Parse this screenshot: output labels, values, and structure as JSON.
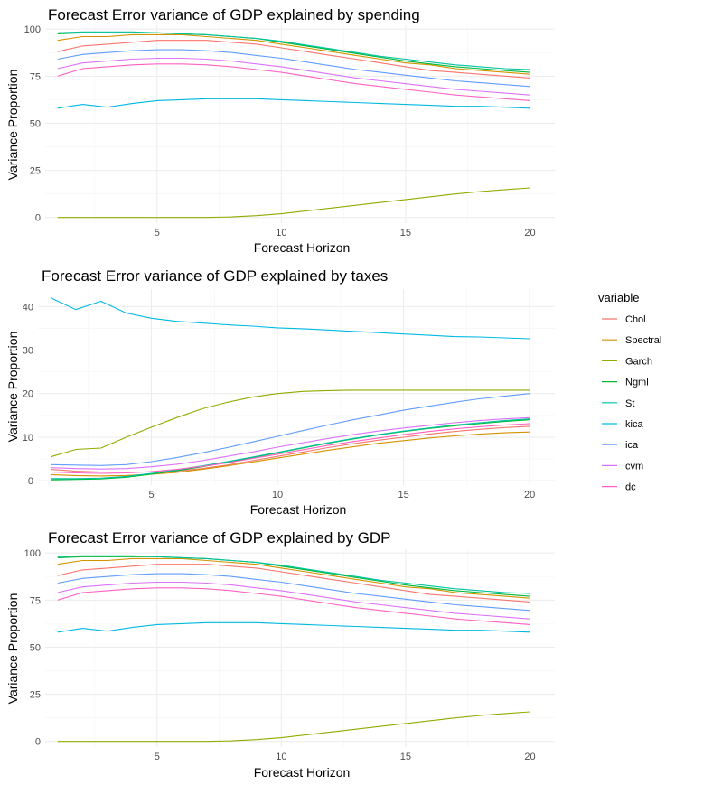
{
  "chart_data": [
    {
      "type": "line",
      "title": "Forecast Error variance of GDP explained by spending",
      "xlabel": "Forecast Horizon",
      "ylabel": "Variance Proportion",
      "xlim": [
        0.5,
        21
      ],
      "ylim": [
        -3,
        102
      ],
      "xticks": [
        5,
        10,
        15,
        20
      ],
      "yticks": [
        0,
        25,
        50,
        75,
        100
      ],
      "x": [
        1,
        2,
        3,
        4,
        5,
        6,
        7,
        8,
        9,
        10,
        11,
        12,
        13,
        14,
        15,
        16,
        17,
        18,
        19,
        20
      ],
      "series": [
        {
          "name": "Chol",
          "values": [
            88,
            91,
            92,
            93,
            94,
            94,
            94,
            93,
            92,
            90,
            88,
            86,
            84,
            82,
            80,
            78,
            77,
            76,
            75,
            74
          ]
        },
        {
          "name": "Spectral",
          "values": [
            94,
            96,
            96,
            97,
            97,
            97,
            96,
            95,
            94,
            92,
            90,
            88,
            86,
            84,
            82,
            81,
            79,
            78,
            77,
            76
          ]
        },
        {
          "name": "Garch",
          "values": [
            0,
            0,
            0,
            0,
            0,
            0,
            0,
            0.3,
            1,
            2,
            3.5,
            5,
            6.5,
            8,
            9.5,
            11,
            12.5,
            13.8,
            14.8,
            15.7
          ]
        },
        {
          "name": "Ngml",
          "values": [
            97.5,
            98,
            98,
            98,
            98,
            97.5,
            97,
            96,
            95,
            93,
            91,
            89,
            87,
            85,
            83,
            81.5,
            80,
            79,
            78,
            77
          ]
        },
        {
          "name": "St",
          "values": [
            98,
            98.5,
            98.5,
            98.5,
            98,
            97.5,
            97,
            96,
            95,
            93.5,
            91.5,
            89.5,
            87.5,
            85.5,
            84,
            82.5,
            81,
            80,
            79,
            78.5
          ]
        },
        {
          "name": "kica",
          "values": [
            58,
            60,
            58.5,
            60.5,
            62,
            62.5,
            63,
            63,
            63,
            62.5,
            62,
            61.5,
            61,
            60.5,
            60,
            59.5,
            59,
            59,
            58.5,
            58
          ]
        },
        {
          "name": "ica",
          "values": [
            84,
            86.5,
            87.5,
            88.5,
            89,
            89,
            88.5,
            87.5,
            86,
            84.5,
            82.5,
            80.5,
            78.5,
            77,
            75.5,
            74,
            72.5,
            71.5,
            70.5,
            69.5
          ]
        },
        {
          "name": "cvm",
          "values": [
            79,
            82,
            83,
            84,
            84.5,
            84.5,
            84,
            83,
            81.5,
            80,
            78,
            76,
            74,
            72.5,
            71,
            69.5,
            68,
            67,
            66,
            65
          ]
        },
        {
          "name": "dc",
          "values": [
            75,
            79,
            80,
            81,
            81.5,
            81.5,
            81,
            80,
            78.5,
            77,
            75,
            73,
            71,
            69.5,
            68,
            66.5,
            65,
            64,
            63,
            62
          ]
        }
      ]
    },
    {
      "type": "line",
      "title": "Forecast Error variance of GDP explained by taxes",
      "xlabel": "Forecast Horizon",
      "ylabel": "Variance Proportion",
      "xlim": [
        0.5,
        21
      ],
      "ylim": [
        -1,
        44
      ],
      "xticks": [
        5,
        10,
        15,
        20
      ],
      "yticks": [
        0,
        10,
        20,
        30,
        40
      ],
      "x": [
        1,
        2,
        3,
        4,
        5,
        6,
        7,
        8,
        9,
        10,
        11,
        12,
        13,
        14,
        15,
        16,
        17,
        18,
        19,
        20
      ],
      "series": [
        {
          "name": "Chol",
          "values": [
            2.6,
            2.2,
            2,
            2,
            2,
            2.2,
            2.8,
            3.6,
            4.6,
            5.6,
            6.6,
            7.6,
            8.5,
            9.3,
            10,
            10.7,
            11.3,
            11.8,
            12.2,
            12.5
          ]
        },
        {
          "name": "Spectral",
          "values": [
            1.4,
            1.2,
            1.1,
            1.2,
            1.5,
            1.9,
            2.6,
            3.4,
            4.3,
            5.2,
            6.1,
            7,
            7.8,
            8.6,
            9.2,
            9.8,
            10.3,
            10.7,
            11,
            11.2
          ]
        },
        {
          "name": "Garch",
          "values": [
            5.5,
            7.2,
            7.5,
            10,
            12.3,
            14.5,
            16.5,
            18,
            19.2,
            20,
            20.5,
            20.7,
            20.8,
            20.8,
            20.8,
            20.8,
            20.8,
            20.8,
            20.8,
            20.8
          ]
        },
        {
          "name": "Ngml",
          "values": [
            0.2,
            0.3,
            0.4,
            0.8,
            1.5,
            2.3,
            3.2,
            4.2,
            5.3,
            6.4,
            7.5,
            8.6,
            9.6,
            10.5,
            11.3,
            12,
            12.6,
            13.1,
            13.6,
            14
          ]
        },
        {
          "name": "St",
          "values": [
            0.5,
            0.5,
            0.6,
            1,
            1.7,
            2.5,
            3.4,
            4.4,
            5.4,
            6.5,
            7.6,
            8.7,
            9.7,
            10.6,
            11.4,
            12.1,
            12.8,
            13.3,
            13.8,
            14.2
          ]
        },
        {
          "name": "kica",
          "values": [
            42,
            39.3,
            41.2,
            38.5,
            37.3,
            36.6,
            36.2,
            35.8,
            35.5,
            35.1,
            34.9,
            34.6,
            34.3,
            34,
            33.7,
            33.4,
            33.1,
            33,
            32.8,
            32.6
          ]
        },
        {
          "name": "ica",
          "values": [
            3.7,
            3.6,
            3.5,
            3.7,
            4.4,
            5.3,
            6.4,
            7.6,
            8.9,
            10.2,
            11.5,
            12.8,
            14,
            15.1,
            16.2,
            17.1,
            18,
            18.8,
            19.4,
            20
          ]
        },
        {
          "name": "cvm",
          "values": [
            3,
            2.8,
            2.7,
            2.8,
            3.2,
            3.8,
            4.6,
            5.6,
            6.6,
            7.7,
            8.7,
            9.7,
            10.6,
            11.4,
            12.1,
            12.7,
            13.3,
            13.8,
            14.2,
            14.5
          ]
        },
        {
          "name": "dc",
          "values": [
            2,
            1.8,
            1.7,
            1.8,
            2.1,
            2.6,
            3.3,
            4.1,
            5.1,
            6.1,
            7.1,
            8.1,
            9,
            9.8,
            10.6,
            11.3,
            11.9,
            12.4,
            12.8,
            13.1
          ]
        }
      ]
    },
    {
      "type": "line",
      "title": "Forecast Error variance of GDP explained by GDP",
      "xlabel": "Forecast Horizon",
      "ylabel": "Variance Proportion",
      "xlim": [
        0.5,
        21
      ],
      "ylim": [
        -3,
        102
      ],
      "xticks": [
        5,
        10,
        15,
        20
      ],
      "yticks": [
        0,
        25,
        50,
        75,
        100
      ],
      "x": [
        1,
        2,
        3,
        4,
        5,
        6,
        7,
        8,
        9,
        10,
        11,
        12,
        13,
        14,
        15,
        16,
        17,
        18,
        19,
        20
      ],
      "series": [
        {
          "name": "Chol",
          "values": [
            88,
            91,
            92,
            93,
            94,
            94,
            94,
            93,
            92,
            90,
            88,
            86,
            84,
            82,
            80,
            78,
            77,
            76,
            75,
            74
          ]
        },
        {
          "name": "Spectral",
          "values": [
            94,
            96,
            96,
            97,
            97,
            97,
            96,
            95,
            94,
            92,
            90,
            88,
            86,
            84,
            82,
            81,
            79,
            78,
            77,
            76
          ]
        },
        {
          "name": "Garch",
          "values": [
            0,
            0,
            0,
            0,
            0,
            0,
            0,
            0.3,
            1,
            2,
            3.5,
            5,
            6.5,
            8,
            9.5,
            11,
            12.5,
            13.8,
            14.8,
            15.7
          ]
        },
        {
          "name": "Ngml",
          "values": [
            97.5,
            98,
            98,
            98,
            98,
            97.5,
            97,
            96,
            95,
            93,
            91,
            89,
            87,
            85,
            83,
            81.5,
            80,
            79,
            78,
            77
          ]
        },
        {
          "name": "St",
          "values": [
            98,
            98.5,
            98.5,
            98.5,
            98,
            97.5,
            97,
            96,
            95,
            93.5,
            91.5,
            89.5,
            87.5,
            85.5,
            84,
            82.5,
            81,
            80,
            79,
            78.5
          ]
        },
        {
          "name": "kica",
          "values": [
            58,
            60,
            58.5,
            60.5,
            62,
            62.5,
            63,
            63,
            63,
            62.5,
            62,
            61.5,
            61,
            60.5,
            60,
            59.5,
            59,
            59,
            58.5,
            58
          ]
        },
        {
          "name": "ica",
          "values": [
            84,
            86.5,
            87.5,
            88.5,
            89,
            89,
            88.5,
            87.5,
            86,
            84.5,
            82.5,
            80.5,
            78.5,
            77,
            75.5,
            74,
            72.5,
            71.5,
            70.5,
            69.5
          ]
        },
        {
          "name": "cvm",
          "values": [
            79,
            82,
            83,
            84,
            84.5,
            84.5,
            84,
            83,
            81.5,
            80,
            78,
            76,
            74,
            72.5,
            71,
            69.5,
            68,
            67,
            66,
            65
          ]
        },
        {
          "name": "dc",
          "values": [
            75,
            79,
            80,
            81,
            81.5,
            81.5,
            81,
            80,
            78.5,
            77,
            75,
            73,
            71,
            69.5,
            68,
            66.5,
            65,
            64,
            63,
            62
          ]
        }
      ]
    }
  ],
  "legend": {
    "title": "variable",
    "items": [
      {
        "label": "Chol",
        "color": "#F8766D"
      },
      {
        "label": "Spectral",
        "color": "#D39200"
      },
      {
        "label": "Garch",
        "color": "#93AA00"
      },
      {
        "label": "Ngml",
        "color": "#00BA38"
      },
      {
        "label": "St",
        "color": "#00C19F"
      },
      {
        "label": "kica",
        "color": "#00B9E3"
      },
      {
        "label": "ica",
        "color": "#619CFF"
      },
      {
        "label": "cvm",
        "color": "#DB72FB"
      },
      {
        "label": "dc",
        "color": "#FF61C3"
      }
    ]
  }
}
